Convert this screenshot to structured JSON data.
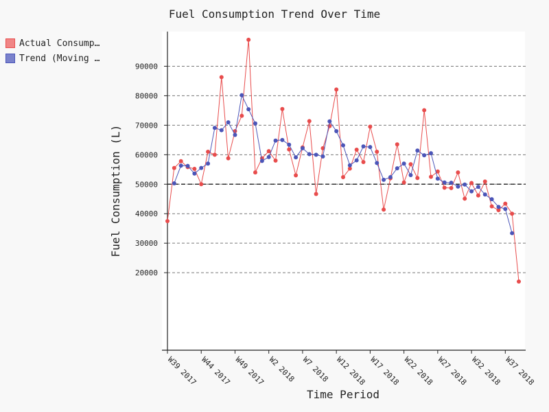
{
  "chart_data": {
    "type": "line",
    "title": "Fuel Consumption Trend Over Time",
    "xlabel": "Time Period",
    "ylabel": "Fuel Consumption (L)",
    "ylim": [
      15000,
      100000
    ],
    "y_ticks": [
      20000,
      30000,
      40000,
      50000,
      60000,
      70000,
      80000,
      90000
    ],
    "x_tick_labels": [
      "W39 2017",
      "W44 2017",
      "W49 2017",
      "W2 2018",
      "W7 2018",
      "W12 2018",
      "W17 2018",
      "W22 2018",
      "W27 2018",
      "W32 2018",
      "W37 2018"
    ],
    "grid": true,
    "reference_line": 50000,
    "legend_position": "top-left",
    "series": [
      {
        "name": "Actual Consumption",
        "color": "#e84c4c",
        "values": [
          37500,
          55500,
          57800,
          55800,
          55200,
          50000,
          61000,
          60000,
          86300,
          58800,
          68000,
          73200,
          99000,
          54000,
          58800,
          61200,
          58000,
          75500,
          61800,
          53000,
          62500,
          71400,
          46700,
          62200,
          69700,
          82100,
          52400,
          55300,
          61700,
          57500,
          69500,
          61000,
          41400,
          52000,
          63500,
          50600,
          56800,
          52100,
          75100,
          52500,
          54300,
          48800,
          48700,
          54000,
          45100,
          50400,
          46200,
          50900,
          42500,
          41200,
          43400,
          40000,
          17000
        ]
      },
      {
        "name": "Trend (Moving Average)",
        "color": "#4b55b8",
        "values": [
          null,
          50300,
          56300,
          56200,
          53600,
          55500,
          57000,
          69100,
          68300,
          71000,
          66700,
          80200,
          75400,
          70600,
          57900,
          59200,
          64800,
          65000,
          63400,
          59100,
          62200,
          60200,
          60000,
          59400,
          71300,
          68000,
          63200,
          56400,
          58100,
          62800,
          62600,
          57200,
          51500,
          52400,
          55400,
          57000,
          53100,
          61400,
          59800,
          60500,
          51900,
          50600,
          50500,
          49200,
          49900,
          47600,
          49100,
          46500,
          44900,
          42300,
          41600,
          33400,
          null
        ]
      }
    ]
  }
}
